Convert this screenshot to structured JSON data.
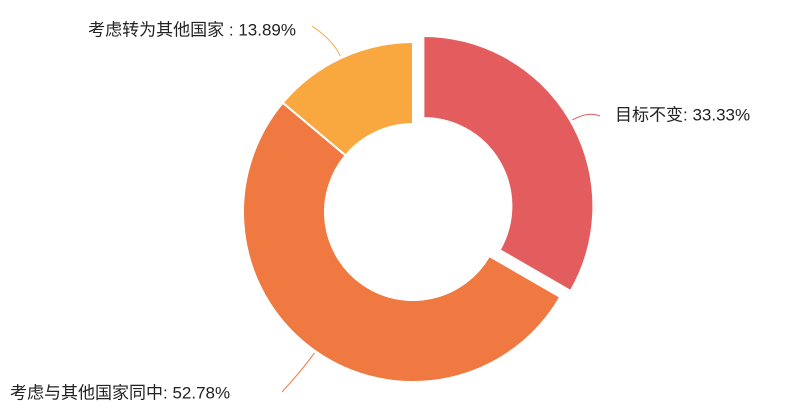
{
  "chart_data": {
    "type": "donut",
    "values": [
      33.33,
      52.78,
      13.89
    ],
    "value_labels": [
      "目标不变: 33.33%",
      "考虑与其他国家同中: 52.78%",
      "考虑转为其他国家 : 13.89%"
    ],
    "colors": [
      "#e35c5e",
      "#f07841",
      "#f9a83f"
    ]
  }
}
